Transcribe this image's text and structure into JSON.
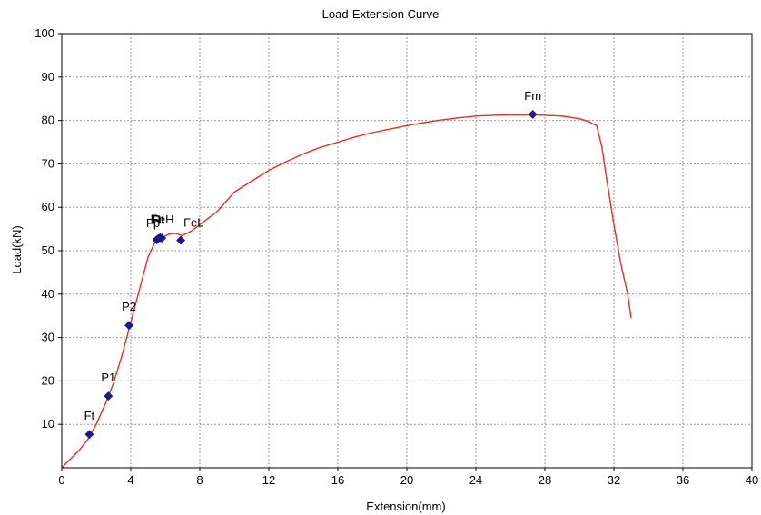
{
  "chart_data": {
    "type": "line",
    "title": "Load-Extension Curve",
    "xlabel": "Extension(mm)",
    "ylabel": "Load(kN)",
    "xlim": [
      0,
      40
    ],
    "ylim": [
      0,
      100
    ],
    "xticks": [
      0,
      4,
      8,
      12,
      16,
      20,
      24,
      28,
      32,
      36,
      40
    ],
    "yticks": [
      10,
      20,
      30,
      40,
      50,
      60,
      70,
      80,
      90,
      100
    ],
    "grid": true,
    "colors": {
      "curve": "#e0302a",
      "marker": "#1a1a8c",
      "grid": "#9a9a9a"
    },
    "series": [
      {
        "x": [
          0,
          0.5,
          1.0,
          1.5,
          2.0,
          2.5,
          3.0,
          3.5,
          4.0,
          4.5,
          5.0,
          5.4,
          5.8,
          6.2,
          6.6,
          7.0,
          7.5,
          8.0,
          8.5,
          9.0,
          10,
          11,
          12,
          13,
          14,
          15,
          16,
          17,
          18,
          19,
          20,
          21,
          22,
          23,
          24,
          25,
          26,
          27,
          27.5,
          28,
          29,
          30,
          30.5,
          31,
          31.3,
          31.6,
          32.0,
          32.4,
          32.8,
          33.0
        ],
        "y": [
          0,
          2.0,
          4.0,
          6.5,
          10,
          14.5,
          19.5,
          26,
          33.5,
          41,
          48.5,
          52,
          53,
          53.8,
          54,
          53.5,
          54.5,
          56,
          57.5,
          59,
          63.5,
          66,
          68.5,
          70.5,
          72.3,
          73.8,
          75,
          76.2,
          77.2,
          78,
          78.8,
          79.5,
          80.1,
          80.6,
          81,
          81.2,
          81.3,
          81.3,
          81.3,
          81.2,
          81,
          80.4,
          79.8,
          78.8,
          74,
          66,
          56,
          47,
          40,
          34.5
        ]
      }
    ],
    "points": [
      {
        "label": "Ft",
        "x": 1.6,
        "y": 7.7
      },
      {
        "label": "P1",
        "x": 2.7,
        "y": 16.5
      },
      {
        "label": "P2",
        "x": 3.9,
        "y": 32.8
      },
      {
        "label": "Fp",
        "x": 5.5,
        "y": 52.5
      },
      {
        "label": "Ft",
        "x": 5.6,
        "y": 52.8
      },
      {
        "label": "Rt",
        "x": 5.7,
        "y": 53.0
      },
      {
        "label": "FeH",
        "x": 5.8,
        "y": 52.9
      },
      {
        "label": "FeL",
        "x": 6.9,
        "y": 52.4
      },
      {
        "label": "Fm",
        "x": 27.3,
        "y": 81.4
      }
    ]
  }
}
